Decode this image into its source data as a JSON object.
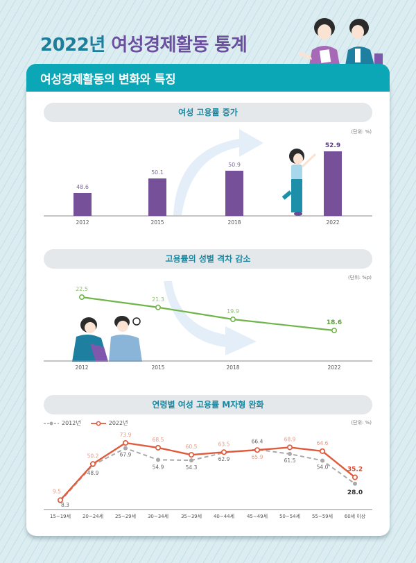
{
  "header": {
    "title_year": "2022년",
    "title_main": "여성경제활동 통계",
    "banner": "여성경제활동의 변화와 특징"
  },
  "colors": {
    "bar": "#76519a",
    "gap_line": "#6fb54a",
    "series_2012": "#a9a9a9",
    "series_2022": "#e05a3c",
    "title_year": "#1b7e9a",
    "title_main": "#6b4f9e",
    "banner": "#0ba7b6",
    "pill_text": "#1a87a0"
  },
  "sections": [
    {
      "title": "여성 고용률 증가",
      "unit": "(단위: %)"
    },
    {
      "title": "고용률의 성별 격차 감소",
      "unit": "(단위: %p)"
    },
    {
      "title": "연령별 여성 고용률 M자형 완화",
      "unit": "(단위: %)",
      "legend": [
        "2012년",
        "2022년"
      ]
    }
  ],
  "chart_data": [
    {
      "type": "bar",
      "title": "여성 고용률 증가",
      "unit": "%",
      "categories": [
        "2012",
        "2015",
        "2018",
        "2022"
      ],
      "values": [
        48.6,
        50.1,
        50.9,
        52.9
      ],
      "value_labels": [
        "48.6",
        "50.1",
        "50.9",
        "52.9"
      ],
      "xlabel": "",
      "ylabel": "",
      "grid": false
    },
    {
      "type": "line",
      "title": "고용률의 성별 격차 감소",
      "unit": "%p",
      "categories": [
        "2012",
        "2015",
        "2018",
        "2022"
      ],
      "values": [
        22.5,
        21.3,
        19.9,
        18.6
      ],
      "value_labels": [
        "22.5",
        "21.3",
        "19.9",
        "18.6"
      ],
      "grid": false
    },
    {
      "type": "line",
      "title": "연령별 여성 고용률 M자형 완화",
      "unit": "%",
      "categories": [
        "15~19세",
        "20~24세",
        "25~29세",
        "30~34세",
        "35~39세",
        "40~44세",
        "45~49세",
        "50~54세",
        "55~59세",
        "60세 이상"
      ],
      "series": [
        {
          "name": "2012년",
          "style": "dashed",
          "values": [
            8.3,
            48.9,
            67.9,
            54.9,
            54.3,
            62.9,
            66.4,
            61.5,
            54.0,
            28.0
          ],
          "value_labels": [
            "8.3",
            "48.9",
            "67.9",
            "54.9",
            "54.3",
            "62.9",
            "66.4",
            "61.5",
            "54.0",
            "28.0"
          ]
        },
        {
          "name": "2022년",
          "style": "solid",
          "values": [
            9.5,
            50.2,
            73.9,
            68.5,
            60.5,
            63.5,
            65.9,
            68.9,
            64.6,
            35.2
          ],
          "value_labels": [
            "9.5",
            "50.2",
            "73.9",
            "68.5",
            "60.5",
            "63.5",
            "65.9",
            "68.9",
            "64.6",
            "35.2"
          ]
        }
      ],
      "legend_position": "top-left",
      "grid": false
    }
  ]
}
